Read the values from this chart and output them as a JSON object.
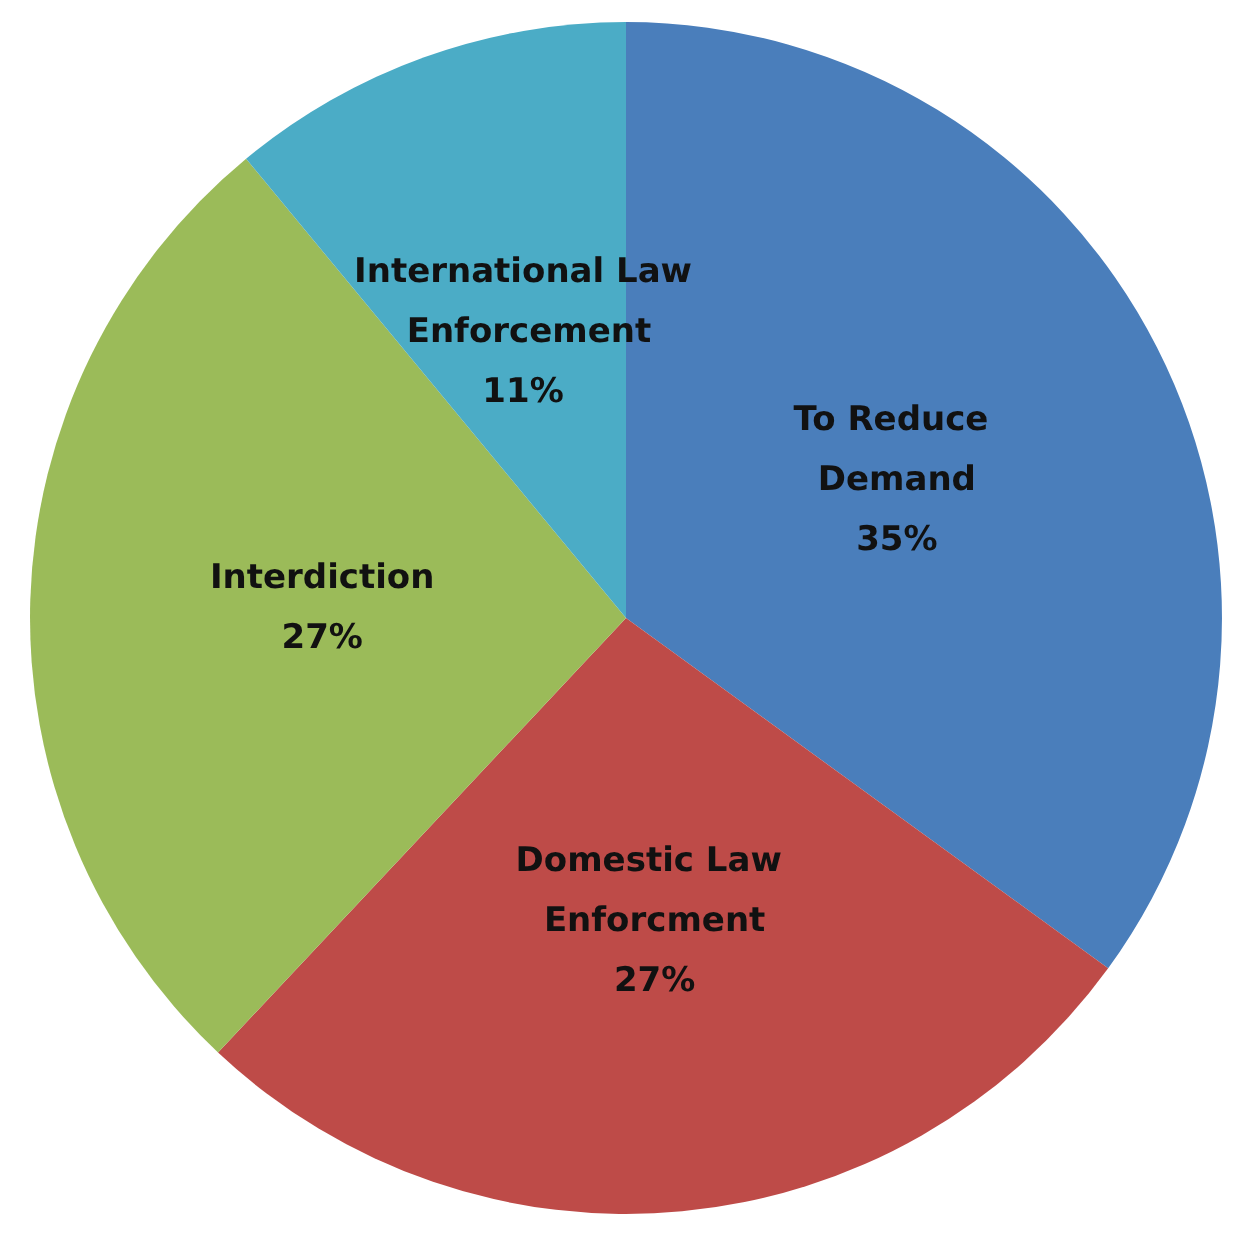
{
  "chart_data": {
    "type": "pie",
    "categories": [
      "To Reduce Demand",
      "Domestic Law Enforcment",
      "Interdiction",
      "International Law Enforcement"
    ],
    "values": [
      35,
      27,
      27,
      11
    ],
    "colors": [
      "#4a7ebb",
      "#be4b48",
      "#9bbb59",
      "#4bacc6"
    ],
    "value_labels": [
      "35%",
      "27%",
      "27%",
      "11%"
    ]
  }
}
